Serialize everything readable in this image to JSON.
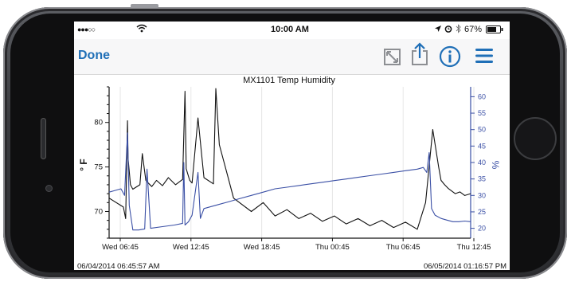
{
  "status": {
    "signal": "●●●○○",
    "time": "10:00 AM",
    "battery": "67%"
  },
  "nav": {
    "done_label": "Done",
    "icons": [
      "fullscreen-icon",
      "share-icon",
      "info-icon",
      "menu-icon"
    ]
  },
  "chart_data": {
    "type": "line",
    "title": "MX1101 Temp Humidity",
    "ylabel": "° F",
    "y2label": "%",
    "ylim": [
      67,
      84
    ],
    "y2lim": [
      17,
      63
    ],
    "yticks": [
      70,
      75,
      80
    ],
    "y2ticks": [
      20,
      25,
      30,
      35,
      40,
      45,
      50,
      55,
      60
    ],
    "xticks": [
      "Wed 06:45",
      "Wed 12:45",
      "Wed 18:45",
      "Thu 00:45",
      "Thu 06:45",
      "Thu 12:45"
    ],
    "start_label": "06/04/2014 06:45:57 AM",
    "end_label": "06/05/2014 01:16:57 PM",
    "series": [
      {
        "axis": "left",
        "color": "#111111",
        "x": [
          0,
          1.2,
          1.4,
          1.55,
          1.6,
          1.8,
          2.0,
          2.6,
          2.8,
          3.1,
          3.3,
          3.6,
          4.0,
          4.5,
          5.0,
          5.6,
          6.2,
          6.4,
          6.5,
          6.8,
          7.0,
          7.5,
          8.0,
          8.8,
          9.0,
          9.3,
          9.7,
          10.0,
          10.5,
          11.0,
          12,
          13,
          14,
          15,
          16,
          17,
          18,
          19,
          20,
          21,
          22,
          23,
          24,
          25,
          26,
          26.7,
          27.3,
          27.8,
          28.0,
          28.3,
          28.6,
          29.2,
          29.6,
          30,
          30.5
        ],
        "y": [
          71.5,
          70.5,
          69.2,
          80.2,
          76.0,
          73.0,
          72.5,
          73.0,
          76.5,
          73.5,
          73.2,
          72.8,
          73.5,
          72.9,
          73.8,
          73.0,
          73.6,
          83.5,
          74.8,
          73.5,
          73.2,
          80.5,
          73.8,
          73.1,
          83.8,
          77.5,
          75.5,
          74.0,
          71.5,
          71.0,
          70.0,
          71.0,
          69.5,
          70.2,
          69.2,
          69.8,
          68.9,
          69.5,
          68.6,
          69.2,
          68.4,
          69.0,
          68.2,
          68.8,
          68.0,
          71.0,
          79.2,
          75.0,
          73.5,
          73.0,
          72.6,
          72.0,
          72.2,
          71.8,
          72.0
        ]
      },
      {
        "axis": "right",
        "color": "#3a4fa5",
        "x": [
          0,
          0.5,
          1.0,
          1.3,
          1.55,
          1.7,
          2.0,
          2.5,
          3.0,
          3.2,
          3.5,
          4.5,
          5.5,
          6.2,
          6.3,
          6.4,
          6.7,
          7.0,
          7.5,
          7.7,
          8.0,
          9.0,
          10,
          11,
          12,
          13,
          14,
          15,
          16,
          17,
          18,
          19,
          20,
          21,
          22,
          23,
          24,
          25,
          26,
          26.5,
          26.8,
          27.0,
          27.2,
          27.5,
          28.0,
          28.5,
          29,
          29.5,
          30,
          30.5
        ],
        "y": [
          31,
          31.5,
          32,
          30,
          49,
          27,
          19.5,
          19.5,
          19.8,
          38,
          20,
          20.5,
          21,
          21.5,
          40,
          21,
          22,
          24,
          37,
          23,
          26,
          27,
          28,
          29,
          30,
          31,
          32,
          32.5,
          33,
          33.5,
          34,
          34.5,
          35,
          35.5,
          36,
          36.5,
          37,
          37.5,
          38,
          38.5,
          37,
          43,
          26,
          24,
          23,
          22.5,
          22,
          22,
          22.2,
          22
        ]
      }
    ],
    "xlim": [
      0,
      30.5
    ]
  }
}
